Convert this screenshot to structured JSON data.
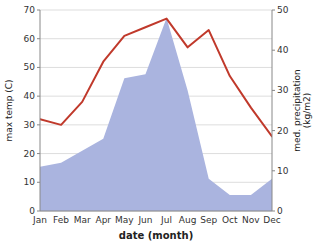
{
  "chart_data": {
    "type": "line",
    "xlabel": "date (month)",
    "ylabel": "max temp (C)",
    "y2label": "med. precipitation\n(kg/m2)",
    "categories": [
      "Jan",
      "Feb",
      "Mar",
      "Apr",
      "May",
      "Jun",
      "Jul",
      "Aug",
      "Sep",
      "Oct",
      "Nov",
      "Dec"
    ],
    "series": [
      {
        "type": "area",
        "axis": "y2",
        "color": "#aab4df",
        "values": [
          11,
          12,
          15,
          18,
          33,
          34,
          48,
          30,
          8,
          4,
          4,
          8
        ]
      },
      {
        "type": "line",
        "color": "#c0392b",
        "values": [
          32,
          30,
          38,
          52,
          61,
          64,
          67,
          57,
          63,
          47,
          36,
          26
        ]
      }
    ],
    "ylim": [
      0,
      70
    ],
    "yticks": [
      0,
      10,
      20,
      30,
      40,
      50,
      60,
      70
    ],
    "y2lim": [
      0,
      50
    ],
    "y2ticks": [
      0,
      10,
      20,
      30,
      40,
      50
    ],
    "grid": true
  }
}
